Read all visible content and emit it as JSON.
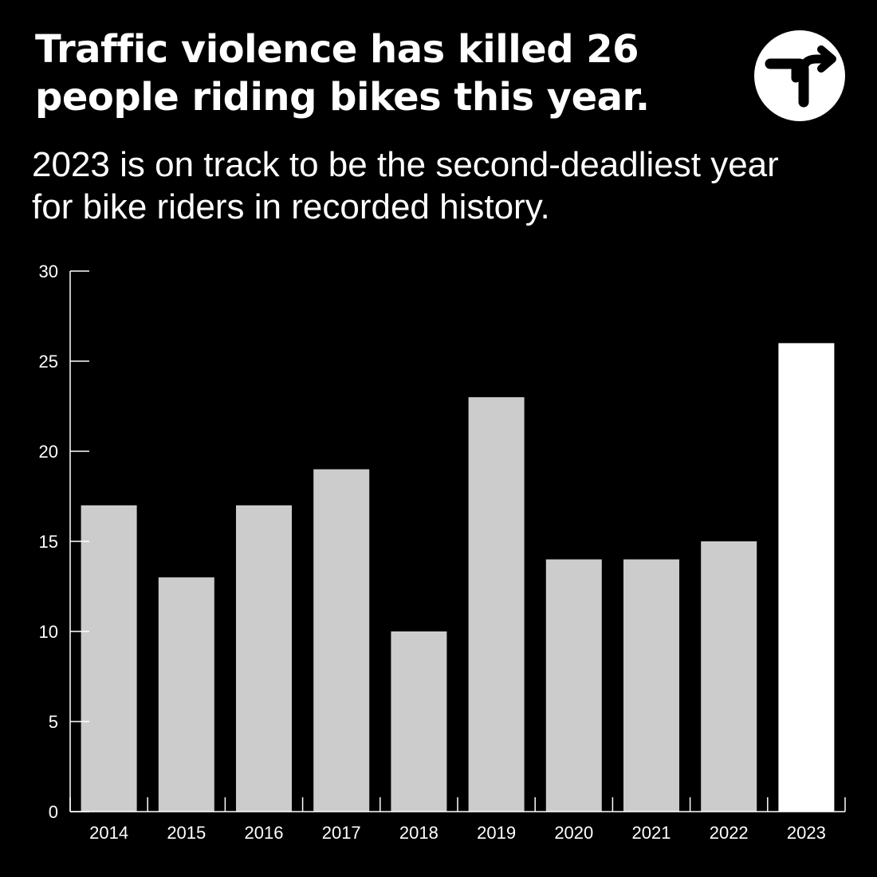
{
  "title": "Traffic violence has killed 26 people riding bikes this year.",
  "subtitle": "2023 is on track to be the second-deadliest year for bike riders in recorded history.",
  "logo_icon": "turn-arrow-icon",
  "colors": {
    "background": "#000000",
    "bar": "#cccccc",
    "bar_highlight": "#ffffff",
    "axis": "#ffffff",
    "text": "#ffffff"
  },
  "chart_data": {
    "type": "bar",
    "title": "",
    "xlabel": "",
    "ylabel": "",
    "categories": [
      "2014",
      "2015",
      "2016",
      "2017",
      "2018",
      "2019",
      "2020",
      "2021",
      "2022",
      "2023"
    ],
    "values": [
      17,
      13,
      17,
      19,
      10,
      23,
      14,
      14,
      15,
      26
    ],
    "highlight_category": "2023",
    "ylim": [
      0,
      30
    ],
    "yticks": [
      0,
      5,
      10,
      15,
      20,
      25,
      30
    ],
    "grid": false,
    "legend": "none"
  }
}
